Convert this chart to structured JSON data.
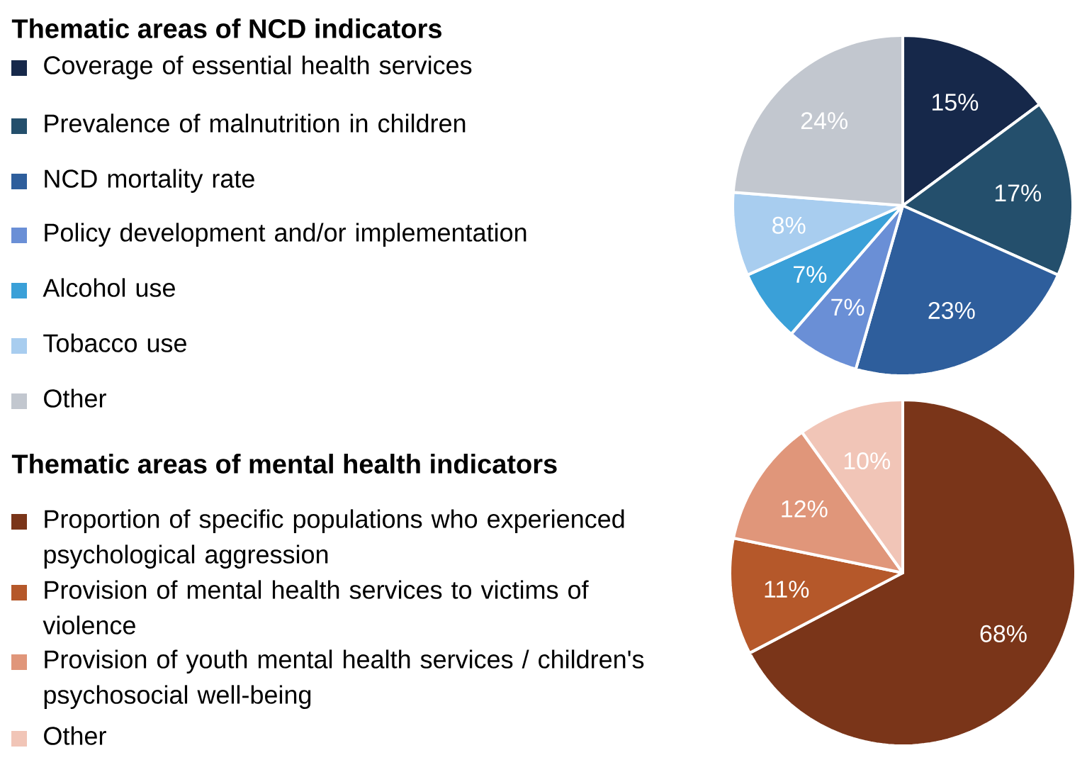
{
  "chart_data": [
    {
      "type": "pie",
      "title": "Thematic areas of NCD indicators",
      "legend": "left",
      "categories": [
        "Coverage of essential health services",
        "Prevalence of malnutrition in children",
        "NCD mortality rate",
        "Policy development and/or implementation",
        "Alcohol use",
        "Tobacco use",
        "Other"
      ],
      "values": [
        15,
        17,
        23,
        7,
        7,
        8,
        24
      ],
      "value_labels": [
        "15%",
        "17%",
        "23%",
        "7%",
        "7%",
        "8%",
        "24%"
      ],
      "colors": [
        "#16284a",
        "#244f6c",
        "#2e5e9c",
        "#6a8fd6",
        "#3aa0d8",
        "#a8cdef",
        "#c2c7cf"
      ]
    },
    {
      "type": "pie",
      "title": "Thematic areas of mental health indicators",
      "legend": "left",
      "categories": [
        "Proportion of specific populations who experienced psychological aggression",
        "Provision of mental health services to victims of violence",
        "Provision of youth mental health services / children's psychosocial well-being",
        "Other"
      ],
      "values": [
        68,
        11,
        12,
        10
      ],
      "value_labels": [
        "68%",
        "11%",
        "12%",
        "10%"
      ],
      "colors": [
        "#7a3519",
        "#b5582a",
        "#e0967a",
        "#f1c5b7"
      ]
    }
  ]
}
